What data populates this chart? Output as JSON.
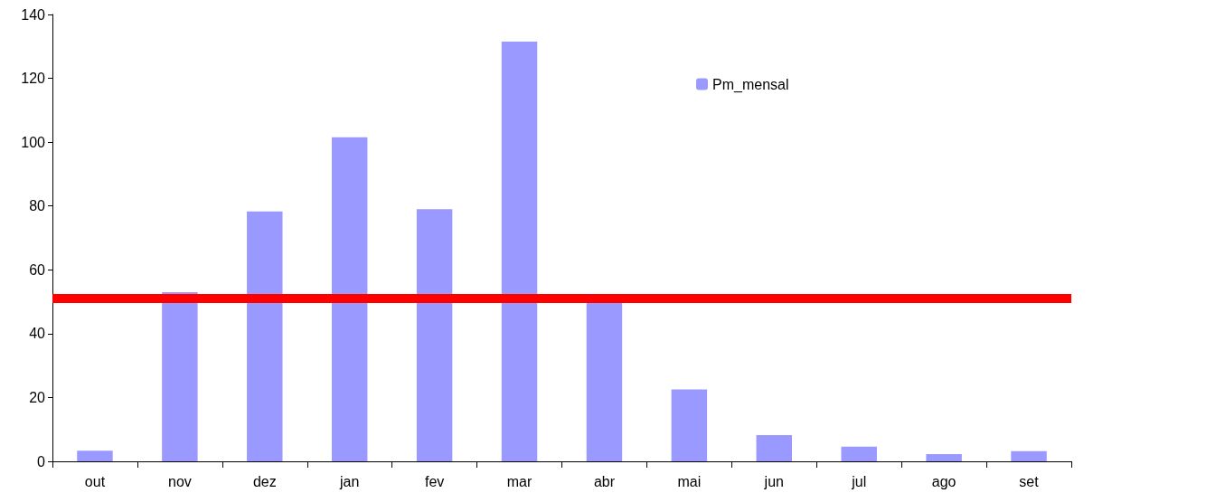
{
  "chart_data": {
    "type": "bar",
    "categories": [
      "out",
      "nov",
      "dez",
      "jan",
      "fev",
      "mar",
      "abr",
      "mai",
      "jun",
      "jul",
      "ago",
      "set"
    ],
    "series": [
      {
        "name": "Pm_mensal",
        "color": "#9999ff",
        "values": [
          3.3,
          53,
          78.3,
          101.5,
          79,
          131.5,
          50,
          22.5,
          8.2,
          4.6,
          2.3,
          3.2
        ]
      }
    ],
    "ylim": [
      0,
      140
    ],
    "yticks": [
      0,
      20,
      40,
      60,
      80,
      100,
      120,
      140
    ],
    "grid": false,
    "legend": "top right",
    "ref_lines": [
      {
        "axis": "y",
        "value": 51.2,
        "color": "#ff0000",
        "line_style": "solid"
      }
    ]
  }
}
